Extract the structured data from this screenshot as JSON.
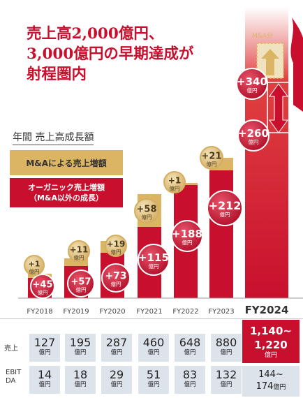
{
  "headline": {
    "line1": "売上高2,000億円、",
    "line2": "3,000億円の早期達成が",
    "line3": "射程圏内"
  },
  "section_title": "年間 売上高成長額",
  "legend": {
    "ma_label": "M&Aによる売上増額",
    "organic_line1": "オーガニック売上増額",
    "organic_line2": "（M&A以外の成長）"
  },
  "ma_bun": "M&A分",
  "unit": "億円",
  "colors": {
    "organic": "#c8102e",
    "ma": "#dcb564",
    "table_bg": "#dde3eb"
  },
  "chart_data": {
    "type": "bar",
    "categories": [
      "FY2018",
      "FY2019",
      "FY2020",
      "FY2021",
      "FY2022",
      "FY2023",
      "FY2024"
    ],
    "series": [
      {
        "name": "オーガニック売上増額",
        "values": [
          45,
          57,
          73,
          115,
          188,
          212,
          260
        ],
        "labels": [
          "+45",
          "+57",
          "+73",
          "+115",
          "+188",
          "+212",
          "+260"
        ]
      },
      {
        "name": "M&Aによる売上増額",
        "values": [
          1,
          11,
          19,
          58,
          1,
          21,
          340
        ],
        "labels": [
          "+1",
          "+11",
          "+19",
          "+58",
          "+1",
          "+21",
          "+340"
        ]
      }
    ]
  },
  "table": {
    "sales_label": "売上",
    "ebitda_label1": "EBIT",
    "ebitda_label2": "DA",
    "sales": [
      "127",
      "195",
      "287",
      "460",
      "648",
      "880"
    ],
    "ebitda": [
      "14",
      "18",
      "29",
      "51",
      "83",
      "132"
    ],
    "fy2024_sales_line1": "1,140~",
    "fy2024_sales_line2": "1,220",
    "fy2024_ebitda_line1": "144~",
    "fy2024_ebitda_line2": "174"
  }
}
